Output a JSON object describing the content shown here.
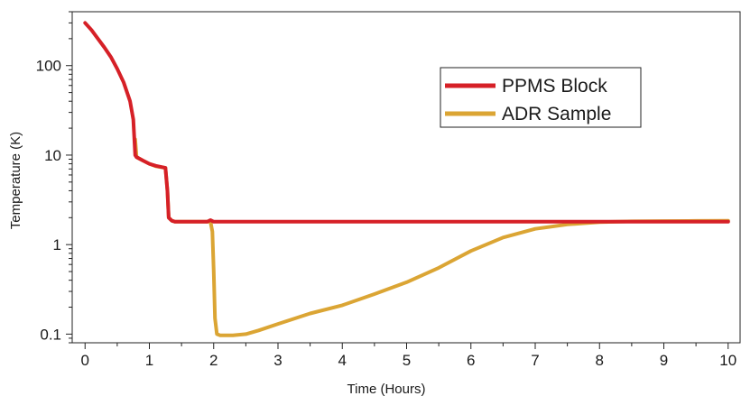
{
  "chart_data": {
    "type": "line",
    "title": "",
    "xlabel": "Time (Hours)",
    "ylabel": "Temperature (K)",
    "xlim": [
      -0.2,
      10.2
    ],
    "ylim": [
      0.08,
      400
    ],
    "yscale": "log",
    "grid": false,
    "legend_position": "top-right",
    "x_ticks": [
      0,
      1,
      2,
      3,
      4,
      5,
      6,
      7,
      8,
      9,
      10
    ],
    "x_tick_labels": [
      "0",
      "1",
      "2",
      "3",
      "4",
      "5",
      "6",
      "7",
      "8",
      "9",
      "10"
    ],
    "y_ticks": [
      0.1,
      1,
      10,
      100
    ],
    "y_tick_labels": [
      "0.1",
      "1",
      "10",
      "100"
    ],
    "series": [
      {
        "name": "PPMS Block",
        "color": "#d62027",
        "x": [
          0,
          0.1,
          0.2,
          0.3,
          0.4,
          0.5,
          0.6,
          0.7,
          0.75,
          0.78,
          0.8,
          0.9,
          1.0,
          1.1,
          1.25,
          1.28,
          1.3,
          1.35,
          1.4,
          1.6,
          1.9,
          1.95,
          2.0,
          3,
          4,
          5,
          6,
          7,
          8,
          9,
          10
        ],
        "y": [
          300,
          250,
          200,
          160,
          125,
          92,
          65,
          40,
          25,
          10,
          9.5,
          8.7,
          8.0,
          7.6,
          7.2,
          4.0,
          2.0,
          1.85,
          1.8,
          1.8,
          1.8,
          1.88,
          1.8,
          1.8,
          1.8,
          1.8,
          1.8,
          1.8,
          1.8,
          1.8,
          1.8
        ]
      },
      {
        "name": "ADR Sample",
        "color": "#dba534",
        "x": [
          0.78,
          0.8,
          0.9,
          1.0,
          1.1,
          1.25,
          1.28,
          1.3,
          1.35,
          1.4,
          1.6,
          1.9,
          1.95,
          1.98,
          2.0,
          2.02,
          2.05,
          2.1,
          2.3,
          2.5,
          2.7,
          3.0,
          3.5,
          4.0,
          4.5,
          5.0,
          5.5,
          6.0,
          6.5,
          7.0,
          7.5,
          8.0,
          8.5,
          9.0,
          9.5,
          10.0
        ],
        "y": [
          15,
          9.5,
          8.7,
          8.0,
          7.5,
          7.2,
          4.0,
          2.0,
          1.85,
          1.8,
          1.8,
          1.8,
          1.8,
          1.4,
          0.5,
          0.15,
          0.1,
          0.097,
          0.097,
          0.1,
          0.11,
          0.13,
          0.17,
          0.21,
          0.28,
          0.38,
          0.55,
          0.85,
          1.2,
          1.5,
          1.68,
          1.78,
          1.82,
          1.83,
          1.84,
          1.85
        ]
      }
    ]
  }
}
